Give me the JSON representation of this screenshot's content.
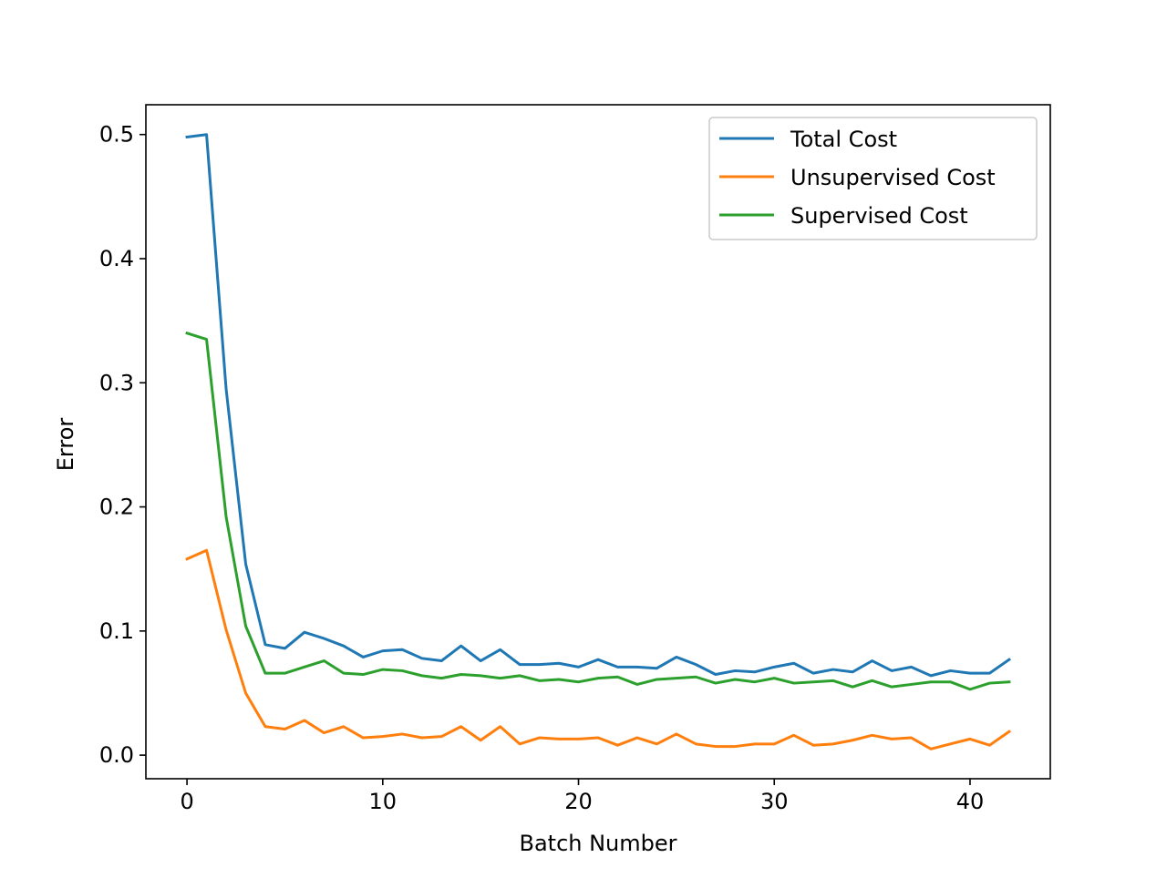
{
  "chart_data": {
    "type": "line",
    "xlabel": "Batch Number",
    "ylabel": "Error",
    "xlim": [
      -2.1,
      44.1
    ],
    "ylim": [
      -0.019,
      0.524
    ],
    "xticks": [
      0,
      10,
      20,
      30,
      40
    ],
    "yticks": [
      0.0,
      0.1,
      0.2,
      0.3,
      0.4,
      0.5
    ],
    "xtick_labels": [
      "0",
      "10",
      "20",
      "30",
      "40"
    ],
    "ytick_labels": [
      "0.0",
      "0.1",
      "0.2",
      "0.3",
      "0.4",
      "0.5"
    ],
    "grid": false,
    "legend_position": "top-right",
    "x": [
      0,
      1,
      2,
      3,
      4,
      5,
      6,
      7,
      8,
      9,
      10,
      11,
      12,
      13,
      14,
      15,
      16,
      17,
      18,
      19,
      20,
      21,
      22,
      23,
      24,
      25,
      26,
      27,
      28,
      29,
      30,
      31,
      32,
      33,
      34,
      35,
      36,
      37,
      38,
      39,
      40,
      41,
      42
    ],
    "series": [
      {
        "name": "Total Cost",
        "color": "#1f77b4",
        "values": [
          0.498,
          0.5,
          0.295,
          0.154,
          0.089,
          0.086,
          0.099,
          0.094,
          0.088,
          0.079,
          0.084,
          0.085,
          0.078,
          0.076,
          0.088,
          0.076,
          0.085,
          0.073,
          0.073,
          0.074,
          0.071,
          0.077,
          0.071,
          0.071,
          0.07,
          0.079,
          0.073,
          0.065,
          0.068,
          0.067,
          0.071,
          0.074,
          0.066,
          0.069,
          0.067,
          0.076,
          0.068,
          0.071,
          0.064,
          0.068,
          0.066,
          0.066,
          0.077
        ]
      },
      {
        "name": "Unsupervised Cost",
        "color": "#ff7f0e",
        "values": [
          0.158,
          0.165,
          0.101,
          0.05,
          0.023,
          0.021,
          0.028,
          0.018,
          0.023,
          0.014,
          0.015,
          0.017,
          0.014,
          0.015,
          0.023,
          0.012,
          0.023,
          0.009,
          0.014,
          0.013,
          0.013,
          0.014,
          0.008,
          0.014,
          0.009,
          0.017,
          0.009,
          0.007,
          0.007,
          0.009,
          0.009,
          0.016,
          0.008,
          0.009,
          0.012,
          0.016,
          0.013,
          0.014,
          0.005,
          0.009,
          0.013,
          0.008,
          0.019
        ]
      },
      {
        "name": "Supervised Cost",
        "color": "#2ca02c",
        "values": [
          0.34,
          0.335,
          0.192,
          0.104,
          0.066,
          0.066,
          0.071,
          0.076,
          0.066,
          0.065,
          0.069,
          0.068,
          0.064,
          0.062,
          0.065,
          0.064,
          0.062,
          0.064,
          0.06,
          0.061,
          0.059,
          0.062,
          0.063,
          0.057,
          0.061,
          0.062,
          0.063,
          0.058,
          0.061,
          0.059,
          0.062,
          0.058,
          0.059,
          0.06,
          0.055,
          0.06,
          0.055,
          0.057,
          0.059,
          0.059,
          0.053,
          0.058,
          0.059
        ]
      }
    ]
  }
}
